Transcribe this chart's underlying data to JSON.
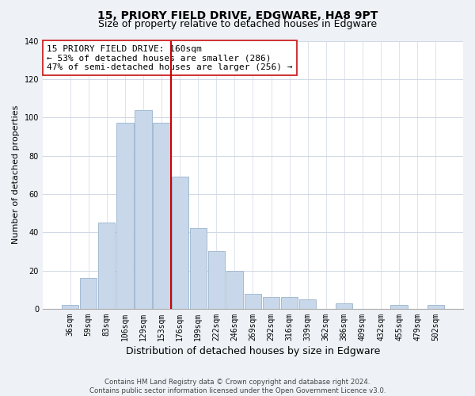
{
  "title": "15, PRIORY FIELD DRIVE, EDGWARE, HA8 9PT",
  "subtitle": "Size of property relative to detached houses in Edgware",
  "xlabel": "Distribution of detached houses by size in Edgware",
  "ylabel": "Number of detached properties",
  "bar_labels": [
    "36sqm",
    "59sqm",
    "83sqm",
    "106sqm",
    "129sqm",
    "153sqm",
    "176sqm",
    "199sqm",
    "222sqm",
    "246sqm",
    "269sqm",
    "292sqm",
    "316sqm",
    "339sqm",
    "362sqm",
    "386sqm",
    "409sqm",
    "432sqm",
    "455sqm",
    "479sqm",
    "502sqm"
  ],
  "bar_values": [
    2,
    16,
    45,
    97,
    104,
    97,
    69,
    42,
    30,
    20,
    8,
    6,
    6,
    5,
    0,
    3,
    0,
    0,
    2,
    0,
    2
  ],
  "bar_color": "#c8d8ea",
  "bar_edge_color": "#9ab4cc",
  "vline_x": 5.5,
  "vline_color": "#cc0000",
  "annotation_title": "15 PRIORY FIELD DRIVE: 160sqm",
  "annotation_line1": "← 53% of detached houses are smaller (286)",
  "annotation_line2": "47% of semi-detached houses are larger (256) →",
  "ylim": [
    0,
    140
  ],
  "yticks": [
    0,
    20,
    40,
    60,
    80,
    100,
    120,
    140
  ],
  "footer_line1": "Contains HM Land Registry data © Crown copyright and database right 2024.",
  "footer_line2": "Contains public sector information licensed under the Open Government Licence v3.0.",
  "bg_color": "#eef2f7",
  "plot_bg_color": "#ffffff",
  "grid_color": "#d0d8e4",
  "title_fontsize": 10,
  "subtitle_fontsize": 9,
  "tick_fontsize": 7,
  "ylabel_fontsize": 8,
  "xlabel_fontsize": 9
}
